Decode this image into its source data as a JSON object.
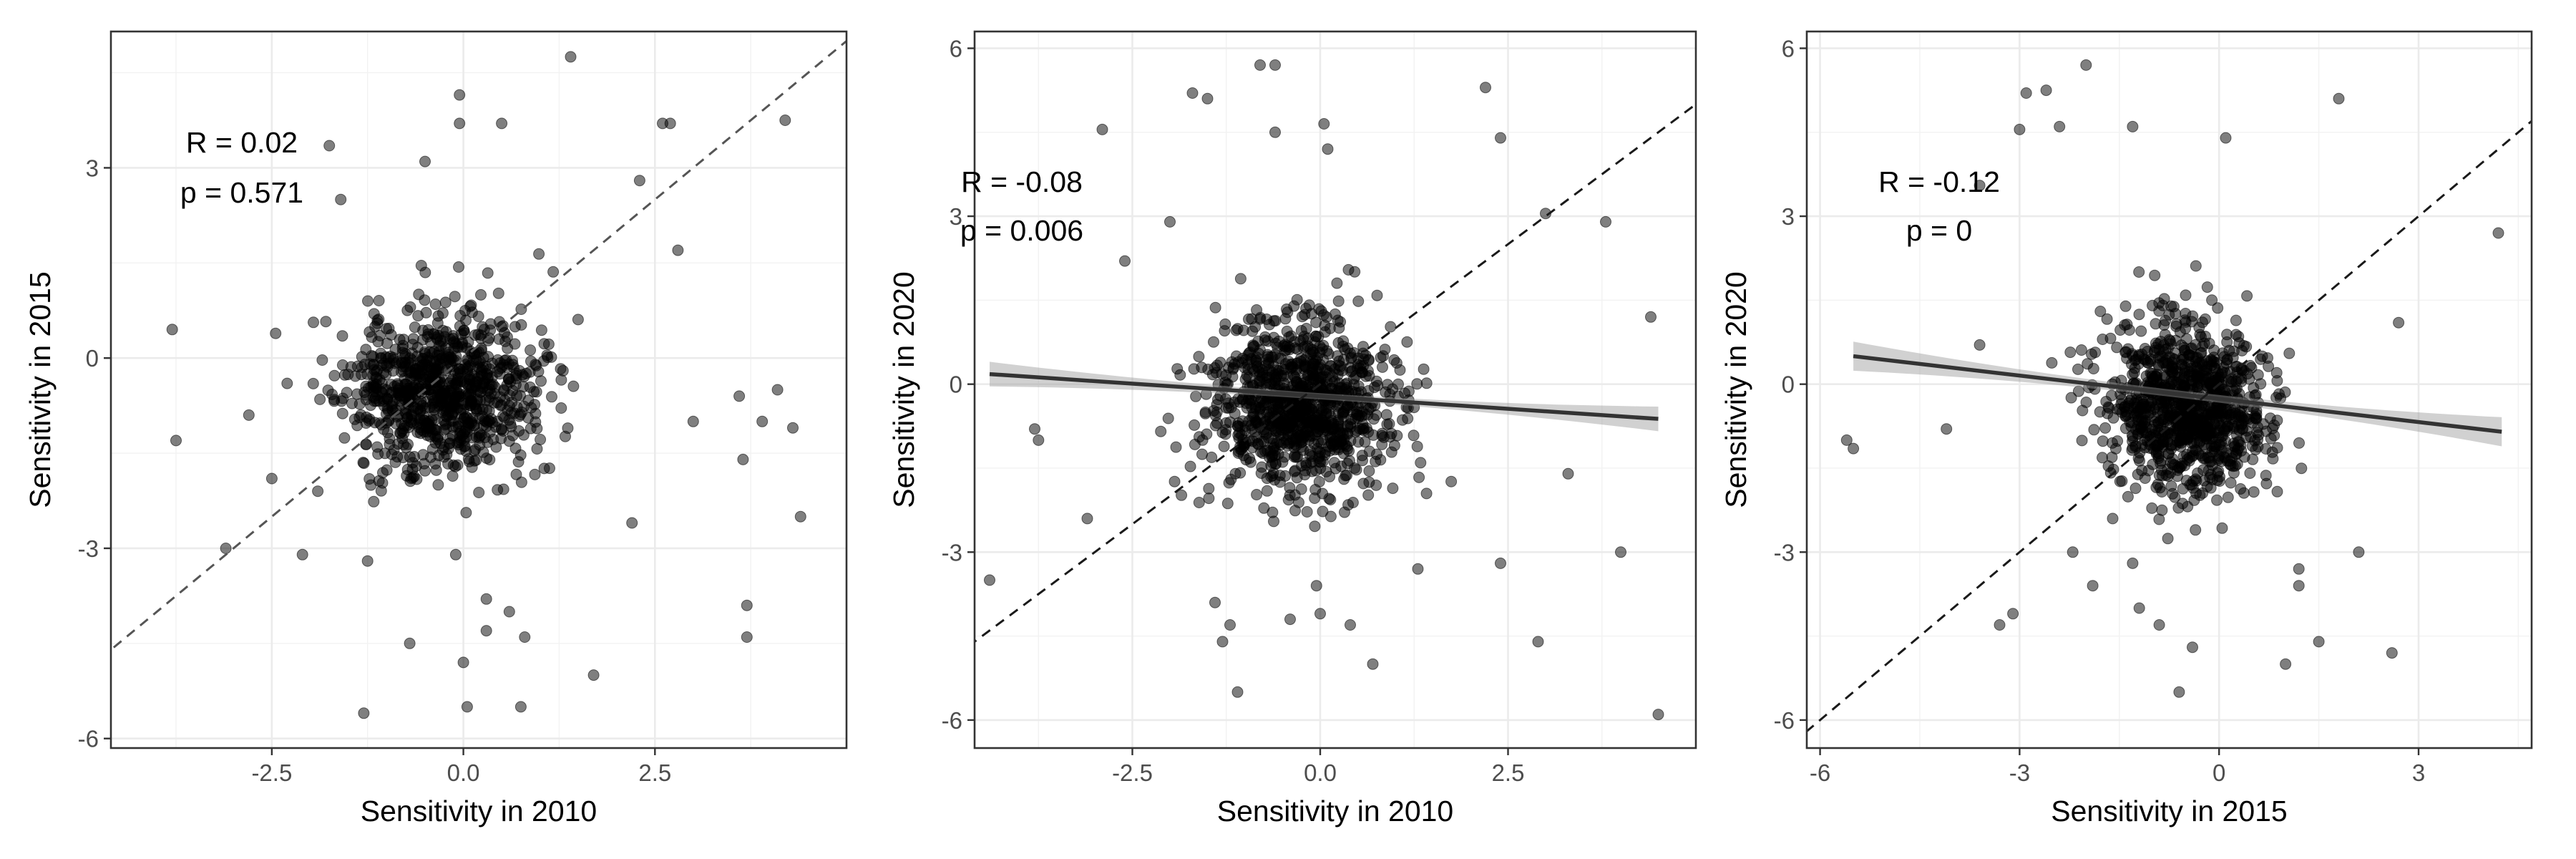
{
  "chart_data": [
    {
      "type": "scatter",
      "xlabel": "Sensitivity in 2010",
      "ylabel": "Sensitivity in 2015",
      "xlim": [
        -4.6,
        5.0
      ],
      "ylim": [
        -6.15,
        5.15
      ],
      "xticks": [
        -2.5,
        0.0,
        2.5
      ],
      "xtick_labels": [
        "-2.5",
        "0.0",
        "2.5"
      ],
      "yticks": [
        -6,
        -3,
        0,
        3
      ],
      "ytick_labels": [
        "-6",
        "-3",
        "0",
        "3"
      ],
      "annotations": [
        "R = 0.02",
        "p = 0.571"
      ],
      "reference_line": {
        "style": "dashed",
        "slope": 1,
        "intercept": 0
      },
      "fit_line": null,
      "seed": 11,
      "cloud": {
        "n": 900,
        "mx": -0.3,
        "my": -0.5,
        "sx": 0.62,
        "sy": 0.62,
        "rho": 0.0
      },
      "points": [
        [
          -3.8,
          0.45
        ],
        [
          -3.75,
          -1.3
        ],
        [
          -3.1,
          -3.0
        ],
        [
          -2.8,
          -0.9
        ],
        [
          -2.5,
          -1.9
        ],
        [
          -2.3,
          -0.4
        ],
        [
          -2.1,
          -3.1
        ],
        [
          -1.9,
          -2.1
        ],
        [
          -1.75,
          3.35
        ],
        [
          -1.6,
          2.5
        ],
        [
          -1.3,
          -5.6
        ],
        [
          -1.25,
          -3.2
        ],
        [
          -0.7,
          -4.5
        ],
        [
          -0.5,
          3.1
        ],
        [
          -0.1,
          -3.1
        ],
        [
          -0.05,
          3.7
        ],
        [
          -0.05,
          4.15
        ],
        [
          0.0,
          -4.8
        ],
        [
          0.05,
          -5.5
        ],
        [
          0.3,
          -3.8
        ],
        [
          0.3,
          -4.3
        ],
        [
          0.5,
          3.7
        ],
        [
          0.6,
          -4.0
        ],
        [
          0.75,
          -5.5
        ],
        [
          0.8,
          -4.4
        ],
        [
          1.3,
          -0.2
        ],
        [
          1.4,
          4.75
        ],
        [
          1.7,
          -5.0
        ],
        [
          2.2,
          -2.6
        ],
        [
          2.3,
          2.8
        ],
        [
          2.6,
          3.7
        ],
        [
          2.7,
          3.7
        ],
        [
          2.8,
          1.7
        ],
        [
          3.0,
          -1.0
        ],
        [
          3.6,
          -0.6
        ],
        [
          3.65,
          -1.6
        ],
        [
          3.7,
          -3.9
        ],
        [
          3.7,
          -4.4
        ],
        [
          3.9,
          -1.0
        ],
        [
          4.1,
          -0.5
        ],
        [
          4.2,
          3.75
        ],
        [
          4.3,
          -1.1
        ],
        [
          4.4,
          -2.5
        ]
      ]
    },
    {
      "type": "scatter",
      "xlabel": "Sensitivity in 2010",
      "ylabel": "Sensitivity in 2020",
      "xlim": [
        -4.6,
        5.0
      ],
      "ylim": [
        -6.5,
        6.3
      ],
      "xticks": [
        -2.5,
        0.0,
        2.5
      ],
      "xtick_labels": [
        "-2.5",
        "0.0",
        "2.5"
      ],
      "yticks": [
        -6,
        -3,
        0,
        3,
        6
      ],
      "ytick_labels": [
        "-6",
        "-3",
        "0",
        "3",
        "6"
      ],
      "annotations": [
        "R = -0.08",
        "p = 0.006"
      ],
      "reference_line": {
        "style": "dashed",
        "slope": 1,
        "intercept": 0
      },
      "fit_line": {
        "x": [
          -4.4,
          4.5
        ],
        "y": [
          0.18,
          -0.62
        ],
        "band": 0.22
      },
      "seed": 23,
      "cloud": {
        "n": 1000,
        "mx": -0.3,
        "my": -0.4,
        "sx": 0.6,
        "sy": 0.75,
        "rho": -0.05
      },
      "points": [
        [
          -4.4,
          -3.5
        ],
        [
          -3.8,
          -0.8
        ],
        [
          -3.75,
          -1.0
        ],
        [
          -3.1,
          -2.4
        ],
        [
          -2.9,
          4.55
        ],
        [
          -2.6,
          2.2
        ],
        [
          -2.0,
          2.9
        ],
        [
          -1.7,
          5.2
        ],
        [
          -1.5,
          5.1
        ],
        [
          -1.4,
          -3.9
        ],
        [
          -1.3,
          -4.6
        ],
        [
          -1.2,
          -4.3
        ],
        [
          -1.1,
          -5.5
        ],
        [
          -0.8,
          5.7
        ],
        [
          -0.6,
          4.5
        ],
        [
          -0.6,
          5.7
        ],
        [
          -0.4,
          -4.2
        ],
        [
          -0.05,
          -3.6
        ],
        [
          0.0,
          -4.1
        ],
        [
          0.05,
          4.65
        ],
        [
          0.1,
          4.2
        ],
        [
          0.4,
          -4.3
        ],
        [
          0.7,
          -5.0
        ],
        [
          1.3,
          -3.3
        ],
        [
          2.2,
          5.3
        ],
        [
          2.4,
          4.4
        ],
        [
          2.4,
          -3.2
        ],
        [
          2.9,
          -4.6
        ],
        [
          3.0,
          3.05
        ],
        [
          3.3,
          -1.6
        ],
        [
          3.8,
          2.9
        ],
        [
          4.0,
          -3.0
        ],
        [
          4.4,
          1.2
        ],
        [
          4.5,
          -5.9
        ]
      ]
    },
    {
      "type": "scatter",
      "xlabel": "Sensitivity in 2015",
      "ylabel": "Sensitivity in 2020",
      "xlim": [
        -6.2,
        4.7
      ],
      "ylim": [
        -6.5,
        6.3
      ],
      "xticks": [
        -6,
        -3,
        0,
        3
      ],
      "xtick_labels": [
        "-6",
        "-3",
        "0",
        "3"
      ],
      "yticks": [
        -6,
        -3,
        0,
        3,
        6
      ],
      "ytick_labels": [
        "-6",
        "-3",
        "0",
        "3",
        "6"
      ],
      "annotations": [
        "R = -0.12",
        "p = 0"
      ],
      "reference_line": {
        "style": "dashed",
        "slope": 1,
        "intercept": 0
      },
      "fit_line": {
        "x": [
          -5.5,
          4.25
        ],
        "y": [
          0.5,
          -0.85
        ],
        "band": 0.26
      },
      "seed": 37,
      "cloud": {
        "n": 1000,
        "mx": -0.5,
        "my": -0.4,
        "sx": 0.6,
        "sy": 0.75,
        "rho": -0.1
      },
      "points": [
        [
          -5.6,
          -1.0
        ],
        [
          -5.5,
          -1.15
        ],
        [
          -4.1,
          -0.8
        ],
        [
          -3.6,
          0.7
        ],
        [
          -3.6,
          3.55
        ],
        [
          -3.3,
          -4.3
        ],
        [
          -3.1,
          -4.1
        ],
        [
          -3.0,
          4.55
        ],
        [
          -2.9,
          5.2
        ],
        [
          -2.6,
          5.25
        ],
        [
          -2.4,
          4.6
        ],
        [
          -2.2,
          -3.0
        ],
        [
          -2.0,
          5.7
        ],
        [
          -1.9,
          -3.6
        ],
        [
          -1.6,
          -2.4
        ],
        [
          -1.3,
          4.6
        ],
        [
          -1.3,
          -3.2
        ],
        [
          -1.2,
          -4.0
        ],
        [
          -0.9,
          -4.3
        ],
        [
          -0.6,
          -5.5
        ],
        [
          -0.4,
          -4.7
        ],
        [
          0.1,
          4.4
        ],
        [
          1.0,
          -5.0
        ],
        [
          1.2,
          -3.3
        ],
        [
          1.2,
          -3.6
        ],
        [
          1.5,
          -4.6
        ],
        [
          1.8,
          5.1
        ],
        [
          2.1,
          -3.0
        ],
        [
          2.6,
          -4.8
        ],
        [
          2.7,
          1.1
        ],
        [
          4.2,
          2.7
        ]
      ]
    }
  ]
}
